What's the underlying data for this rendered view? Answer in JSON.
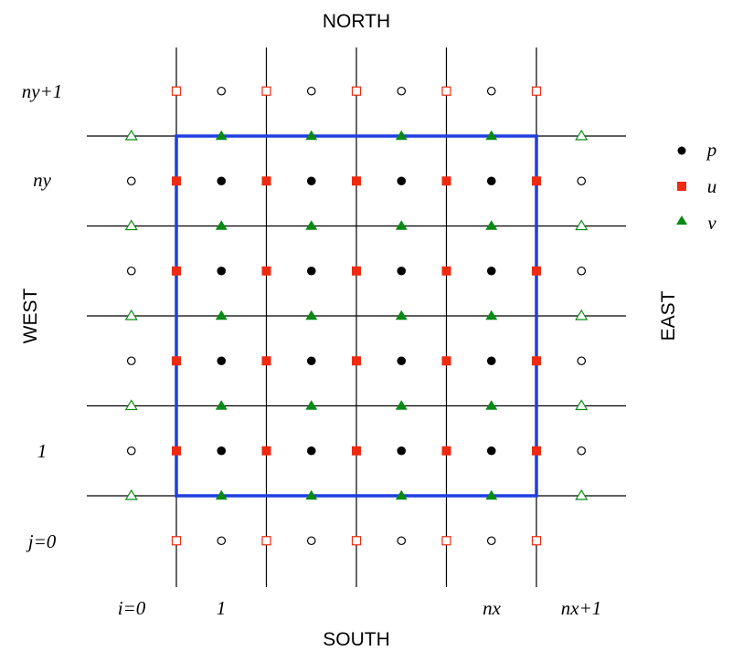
{
  "directions": {
    "north": "NORTH",
    "south": "SOUTH",
    "west": "WEST",
    "east": "EAST"
  },
  "i_labels": [
    "i=0",
    "1",
    "nx",
    "nx+1"
  ],
  "j_labels": [
    "ny+1",
    "ny",
    "1",
    "j=0"
  ],
  "legend": [
    {
      "symbol": "filled-circle",
      "label": "p",
      "color": "#000000"
    },
    {
      "symbol": "filled-square",
      "label": "u",
      "color": "#ee2a10"
    },
    {
      "symbol": "filled-triangle",
      "label": "v",
      "color": "#0a8a16"
    }
  ],
  "colors": {
    "grid": "#000000",
    "domain_boundary": "#1f3fe0",
    "p": "#000000",
    "u": "#ee2a10",
    "v": "#0a8a16"
  },
  "grid": {
    "interior_cells_x": 4,
    "interior_cells_y": 4,
    "ghost_cells_per_side": 1
  }
}
